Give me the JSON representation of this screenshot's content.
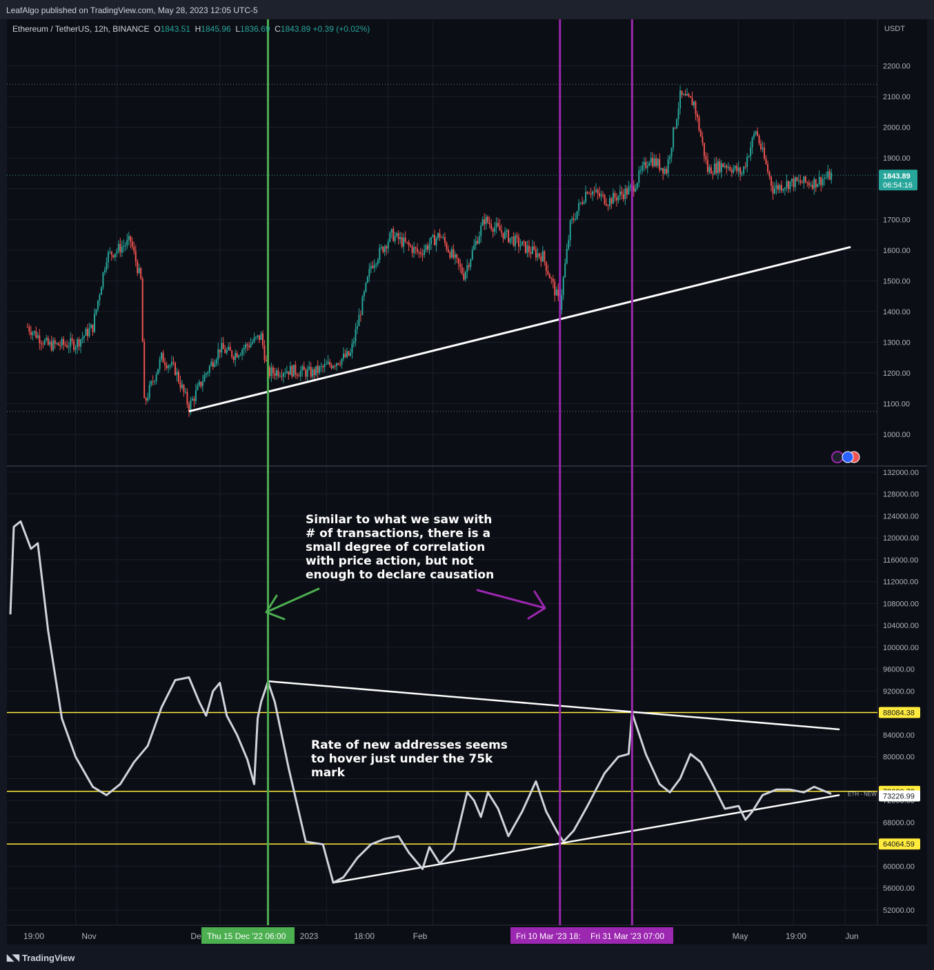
{
  "header": {
    "published": "LeafAlgo published on TradingView.com, May 28, 2023 12:05 UTC-5"
  },
  "legend": {
    "symbol": "Ethereum / TetherUS, 12h, BINANCE",
    "o_label": "O",
    "o": "1843.51",
    "h_label": "H",
    "h": "1845.96",
    "l_label": "L",
    "l": "1836.69",
    "c_label": "C",
    "c": "1843.89",
    "change": "+0.39 (+0.02%)"
  },
  "price_axis": {
    "currency": "USDT",
    "ticks": [
      "2200.00",
      "2100.00",
      "2000.00",
      "1900.00",
      "1700.00",
      "1600.00",
      "1500.00",
      "1400.00",
      "1300.00",
      "1200.00",
      "1100.00",
      "1000.00"
    ],
    "last_price": "1843.89",
    "countdown": "06:54:16"
  },
  "indicator_axis": {
    "ticks": [
      "132000.00",
      "128000.00",
      "124000.00",
      "120000.00",
      "116000.00",
      "112000.00",
      "108000.00",
      "104000.00",
      "100000.00",
      "96000.00",
      "92000.00",
      "84000.00",
      "80000.00",
      "72000.00",
      "68000.00",
      "60000.00",
      "56000.00",
      "52000.00"
    ],
    "levels": [
      "88084.38",
      "73680.73",
      "64064.59"
    ],
    "current": "73226.99",
    "series_label": "ETH - NEW"
  },
  "time_axis": {
    "ticks": [
      "19:00",
      "Nov",
      "De",
      "2023",
      "18:00",
      "Feb",
      "May",
      "19:00",
      "Jun"
    ],
    "markers": [
      "Thu 15 Dec '22   06:00",
      "Fri 10 Mar '23   18:",
      "Fri 31 Mar '23   07:00"
    ]
  },
  "annotations": {
    "top_note": "Similar to what we saw with\n# of transactions, there is a\nsmall degree of correlation\nwith price action, but not\nenough to declare causation",
    "bottom_note": "Rate of new addresses seems\nto hover just under the 75k\nmark"
  },
  "footer": {
    "brand": "TradingView"
  },
  "colors": {
    "up": "#26a69a",
    "down": "#ef5350",
    "green_line": "#4caf50",
    "purple_line": "#9c27b0",
    "level_line": "#ffeb3b",
    "indicator": "#d1d4dc"
  },
  "chart_data": [
    {
      "type": "candlestick",
      "title": "Ethereum / TetherUS, 12h, BINANCE",
      "ylabel": "USDT",
      "ylim": [
        900,
        2300
      ],
      "x": [
        "Oct 2022",
        "Nov 2022",
        "Dec 2022",
        "Jan 2023",
        "Feb 2023",
        "Mar 2023",
        "Apr 2023",
        "May 2023"
      ],
      "close_path": [
        {
          "t": "2022-10-06",
          "v": 1350
        },
        {
          "t": "2022-10-12",
          "v": 1290
        },
        {
          "t": "2022-10-20",
          "v": 1295
        },
        {
          "t": "2022-10-25",
          "v": 1350
        },
        {
          "t": "2022-10-29",
          "v": 1580
        },
        {
          "t": "2022-11-01",
          "v": 1600
        },
        {
          "t": "2022-11-05",
          "v": 1630
        },
        {
          "t": "2022-11-08",
          "v": 1500
        },
        {
          "t": "2022-11-09",
          "v": 1100
        },
        {
          "t": "2022-11-14",
          "v": 1250
        },
        {
          "t": "2022-11-18",
          "v": 1210
        },
        {
          "t": "2022-11-22",
          "v": 1090
        },
        {
          "t": "2022-11-27",
          "v": 1200
        },
        {
          "t": "2022-12-01",
          "v": 1280
        },
        {
          "t": "2022-12-05",
          "v": 1260
        },
        {
          "t": "2022-12-13",
          "v": 1320
        },
        {
          "t": "2022-12-15",
          "v": 1200
        },
        {
          "t": "2022-12-20",
          "v": 1210
        },
        {
          "t": "2022-12-28",
          "v": 1200
        },
        {
          "t": "2023-01-08",
          "v": 1260
        },
        {
          "t": "2023-01-14",
          "v": 1550
        },
        {
          "t": "2023-01-20",
          "v": 1650
        },
        {
          "t": "2023-01-28",
          "v": 1590
        },
        {
          "t": "2023-02-03",
          "v": 1650
        },
        {
          "t": "2023-02-10",
          "v": 1520
        },
        {
          "t": "2023-02-16",
          "v": 1700
        },
        {
          "t": "2023-02-22",
          "v": 1650
        },
        {
          "t": "2023-03-01",
          "v": 1600
        },
        {
          "t": "2023-03-05",
          "v": 1580
        },
        {
          "t": "2023-03-10",
          "v": 1420
        },
        {
          "t": "2023-03-13",
          "v": 1680
        },
        {
          "t": "2023-03-18",
          "v": 1800
        },
        {
          "t": "2023-03-24",
          "v": 1760
        },
        {
          "t": "2023-03-31",
          "v": 1800
        },
        {
          "t": "2023-04-05",
          "v": 1900
        },
        {
          "t": "2023-04-10",
          "v": 1860
        },
        {
          "t": "2023-04-14",
          "v": 2100
        },
        {
          "t": "2023-04-18",
          "v": 2080
        },
        {
          "t": "2023-04-22",
          "v": 1860
        },
        {
          "t": "2023-04-27",
          "v": 1880
        },
        {
          "t": "2023-05-02",
          "v": 1850
        },
        {
          "t": "2023-05-06",
          "v": 1990
        },
        {
          "t": "2023-05-11",
          "v": 1800
        },
        {
          "t": "2023-05-16",
          "v": 1820
        },
        {
          "t": "2023-05-23",
          "v": 1820
        },
        {
          "t": "2023-05-28",
          "v": 1843.89
        }
      ],
      "trendline": [
        {
          "t": "2022-11-22",
          "v": 1075
        },
        {
          "t": "2023-05-28",
          "v": 1610
        }
      ],
      "dotted_levels": [
        2140,
        1075
      ],
      "last": 1843.89
    },
    {
      "type": "line",
      "title": "ETH - NEW",
      "ylim": [
        50000,
        132000
      ],
      "series": [
        {
          "points": [
            {
              "t": "2022-10-01",
              "v": 106000
            },
            {
              "t": "2022-10-02",
              "v": 122000
            },
            {
              "t": "2022-10-04",
              "v": 123000
            },
            {
              "t": "2022-10-07",
              "v": 118000
            },
            {
              "t": "2022-10-09",
              "v": 119000
            },
            {
              "t": "2022-10-12",
              "v": 103000
            },
            {
              "t": "2022-10-16",
              "v": 87000
            },
            {
              "t": "2022-10-20",
              "v": 80000
            },
            {
              "t": "2022-10-25",
              "v": 74500
            },
            {
              "t": "2022-10-29",
              "v": 73000
            },
            {
              "t": "2022-11-02",
              "v": 75000
            },
            {
              "t": "2022-11-06",
              "v": 79000
            },
            {
              "t": "2022-11-10",
              "v": 82000
            },
            {
              "t": "2022-11-14",
              "v": 89000
            },
            {
              "t": "2022-11-18",
              "v": 94000
            },
            {
              "t": "2022-11-22",
              "v": 94500
            },
            {
              "t": "2022-11-25",
              "v": 90000
            },
            {
              "t": "2022-11-27",
              "v": 87500
            },
            {
              "t": "2022-11-29",
              "v": 92000
            },
            {
              "t": "2022-12-01",
              "v": 93500
            },
            {
              "t": "2022-12-03",
              "v": 87500
            },
            {
              "t": "2022-12-06",
              "v": 84000
            },
            {
              "t": "2022-12-09",
              "v": 79500
            },
            {
              "t": "2022-12-11",
              "v": 75000
            },
            {
              "t": "2022-12-12",
              "v": 87000
            },
            {
              "t": "2022-12-13",
              "v": 90000
            },
            {
              "t": "2022-12-15",
              "v": 93700
            },
            {
              "t": "2022-12-17",
              "v": 90000
            },
            {
              "t": "2022-12-21",
              "v": 78000
            },
            {
              "t": "2022-12-26",
              "v": 64500
            },
            {
              "t": "2022-12-31",
              "v": 64000
            },
            {
              "t": "2023-01-03",
              "v": 57000
            },
            {
              "t": "2023-01-06",
              "v": 58000
            },
            {
              "t": "2023-01-10",
              "v": 61500
            },
            {
              "t": "2023-01-14",
              "v": 64000
            },
            {
              "t": "2023-01-18",
              "v": 65000
            },
            {
              "t": "2023-01-22",
              "v": 65500
            },
            {
              "t": "2023-01-25",
              "v": 62500
            },
            {
              "t": "2023-01-29",
              "v": 59500
            },
            {
              "t": "2023-01-31",
              "v": 63500
            },
            {
              "t": "2023-02-03",
              "v": 60500
            },
            {
              "t": "2023-02-07",
              "v": 63000
            },
            {
              "t": "2023-02-11",
              "v": 73500
            },
            {
              "t": "2023-02-13",
              "v": 72000
            },
            {
              "t": "2023-02-15",
              "v": 69000
            },
            {
              "t": "2023-02-17",
              "v": 73500
            },
            {
              "t": "2023-02-20",
              "v": 70500
            },
            {
              "t": "2023-02-23",
              "v": 65500
            },
            {
              "t": "2023-02-27",
              "v": 70000
            },
            {
              "t": "2023-03-03",
              "v": 75500
            },
            {
              "t": "2023-03-06",
              "v": 70000
            },
            {
              "t": "2023-03-09",
              "v": 66500
            },
            {
              "t": "2023-03-11",
              "v": 64500
            },
            {
              "t": "2023-03-14",
              "v": 66500
            },
            {
              "t": "2023-03-18",
              "v": 71000
            },
            {
              "t": "2023-03-23",
              "v": 77000
            },
            {
              "t": "2023-03-27",
              "v": 80000
            },
            {
              "t": "2023-03-30",
              "v": 80500
            },
            {
              "t": "2023-03-31",
              "v": 88000
            },
            {
              "t": "2023-04-04",
              "v": 80500
            },
            {
              "t": "2023-04-08",
              "v": 75000
            },
            {
              "t": "2023-04-11",
              "v": 73500
            },
            {
              "t": "2023-04-14",
              "v": 76000
            },
            {
              "t": "2023-04-17",
              "v": 80500
            },
            {
              "t": "2023-04-20",
              "v": 79000
            },
            {
              "t": "2023-04-23",
              "v": 75500
            },
            {
              "t": "2023-04-27",
              "v": 70500
            },
            {
              "t": "2023-05-01",
              "v": 71000
            },
            {
              "t": "2023-05-03",
              "v": 68500
            },
            {
              "t": "2023-05-05",
              "v": 70000
            },
            {
              "t": "2023-05-08",
              "v": 73000
            },
            {
              "t": "2023-05-12",
              "v": 74000
            },
            {
              "t": "2023-05-16",
              "v": 74000
            },
            {
              "t": "2023-05-20",
              "v": 73500
            },
            {
              "t": "2023-05-23",
              "v": 74500
            },
            {
              "t": "2023-05-28",
              "v": 73226.99
            }
          ]
        }
      ],
      "levels": [
        88084.38,
        73680.73,
        64064.59
      ],
      "trendlines": [
        [
          {
            "t": "2022-12-15",
            "v": 93800
          },
          {
            "t": "2023-05-28",
            "v": 85000
          }
        ],
        [
          {
            "t": "2023-01-03",
            "v": 57000
          },
          {
            "t": "2023-05-28",
            "v": 73000
          }
        ]
      ],
      "verticals": [
        "2022-12-15",
        "2023-03-10",
        "2023-03-31"
      ]
    }
  ]
}
